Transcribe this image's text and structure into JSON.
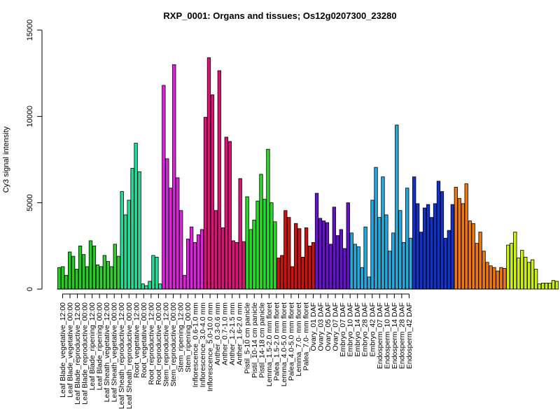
{
  "chart_data": {
    "type": "bar",
    "title": "RXP_0001: Organs and tissues; Os12g0207300_23280",
    "ylabel": "Cy3 signal intensity",
    "xlabel": "",
    "ylim": [
      0,
      15000
    ],
    "yticks": [
      0,
      5000,
      10000,
      15000
    ],
    "grid": false,
    "tick_labels": [
      "Leaf Blade_vegetative_12:00",
      "Leaf Blade_vegetative_00:00",
      "Leaf Blade_reproductive_12:00",
      "Leaf Blade_reproductive_00:00",
      "Leaf Blade_ripening_12:00",
      "Leaf Blade_ripening_00:00",
      "Leaf Sheath_vegetative_12:00",
      "Leaf Sheath_vegetative_00:00",
      "Leaf Sheath_reproductive_12:00",
      "Leaf Sheath_reproductive_00:00",
      "Root_vegetative_12:00",
      "Root_vegetative_00:00",
      "Root_reproductive_12:00",
      "Root_reproductive_00:00",
      "Stem_reproductive_12:00",
      "Stem_reproductive_00:00",
      "Stem_ripening_12:00",
      "Stem_ripening_00:00",
      "Inflorescence_0.6-1.0 mm",
      "Inflorescence_3.0-4.0 mm",
      "Inflorescence_5.0-10.0 mm",
      "Anther_0.3-0.6 mm",
      "Anther_0.7-1.0 mm",
      "Anther_1.2-1.5 mm",
      "Anther_1.6-2.0 mm",
      "Pistil_5-10 cm panicle",
      "Pistil_10-14 cm panicle",
      "Pistil_14-18 cm panicle",
      "Lemma_1.5-2.0 mm floret",
      "Palea_1.5-2.0 mm floret",
      "Lemma_4.0-5.0 mm floret",
      "Palea_4.0-5.0 mm floret",
      "Lemma_7.0- mm floret",
      "Palea_7.0- mm floret",
      "Ovary_01 DAF",
      "Ovary_03 DAF",
      "Ovary_05 DAF",
      "Ovary_07 DAF",
      "Embryo_07 DAF",
      "Embryo_10 DAF",
      "Embryo_14 DAF",
      "Embryo_28 DAF",
      "Embryo_42 DAF",
      "Endosperm_07 DAF",
      "Endosperm_10 DAF",
      "Endosperm_14 DAF",
      "Endosperm_28 DAF",
      "Endosperm_42 DAF"
    ],
    "groups": [
      {
        "color": "#22cc22",
        "values": [
          1250,
          1300,
          800,
          2150,
          1900,
          1150
        ]
      },
      {
        "color": "#22cc22",
        "values": [
          2500,
          2000,
          1300,
          2800,
          2500,
          1400
        ]
      },
      {
        "color": "#33cc33",
        "values": [
          1300,
          1950,
          1600,
          1300,
          2600,
          1900
        ]
      },
      {
        "color": "#22dd99",
        "values": [
          5650,
          4300,
          5150,
          7000,
          8450,
          6800
        ]
      },
      {
        "color": "#22dd99",
        "values": [
          300,
          200,
          450,
          1950,
          1850,
          300
        ]
      },
      {
        "color": "#dd22dd",
        "values": [
          11800,
          7550,
          5850,
          13000,
          6450,
          4550
        ]
      },
      {
        "color": "#dd22dd",
        "values": [
          800,
          2900,
          3600,
          2700,
          3150,
          3450
        ]
      },
      {
        "color": "#dd1177",
        "values": [
          9950,
          13400,
          11250,
          4550,
          12650,
          3550
        ]
      },
      {
        "color": "#dd1177",
        "values": [
          8800,
          8550,
          2800,
          2700,
          6400,
          2750
        ]
      },
      {
        "color": "#22dd22",
        "values": [
          5350,
          3450,
          4000,
          5100,
          6650,
          5200
        ]
      },
      {
        "color": "#22dd22",
        "values": [
          8100,
          5000,
          3900
        ]
      },
      {
        "color": "#cc1111",
        "values": [
          1800,
          1950,
          4550,
          4150,
          1300,
          3800
        ]
      },
      {
        "color": "#cc1111",
        "values": [
          3500,
          1850,
          3550,
          2500,
          2700
        ]
      },
      {
        "color": "#6611cc",
        "values": [
          5550,
          4100,
          3950,
          3850,
          2600,
          4750
        ]
      },
      {
        "color": "#6611cc",
        "values": [
          3100,
          3450,
          2350,
          5000
        ]
      },
      {
        "color": "#22aadd",
        "values": [
          3250,
          2600,
          2450,
          1250,
          3600,
          700
        ]
      },
      {
        "color": "#22aadd",
        "values": [
          5150,
          7050,
          4150,
          6500,
          4300,
          2200
        ]
      },
      {
        "color": "#22aadd",
        "values": [
          3250,
          9500,
          4550,
          2700,
          5850,
          2950
        ]
      },
      {
        "color": "#1133cc",
        "values": [
          6500,
          4950,
          3300,
          4700,
          4900,
          4150
        ]
      },
      {
        "color": "#1133cc",
        "values": [
          4950,
          6250,
          5650,
          2950,
          3400,
          4900
        ]
      },
      {
        "color": "#ee7711",
        "values": [
          5900,
          5250,
          4950,
          6100,
          3950,
          3800
        ]
      },
      {
        "color": "#ee7711",
        "values": [
          2650,
          3300,
          2200,
          1550,
          1350,
          1250
        ]
      },
      {
        "color": "#ee7711",
        "values": [
          1050,
          1250,
          1200
        ]
      },
      {
        "color": "#ccee11",
        "values": [
          2550,
          2650,
          3300,
          1800,
          2250,
          1850
        ]
      },
      {
        "color": "#ccee11",
        "values": [
          1550,
          1700,
          1150,
          300,
          350,
          350
        ]
      },
      {
        "color": "#ccee11",
        "values": [
          350,
          500,
          450
        ]
      }
    ]
  }
}
